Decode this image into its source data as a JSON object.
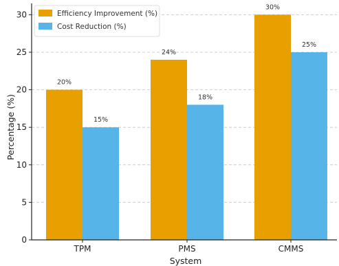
{
  "chart_data": {
    "type": "bar",
    "title": "",
    "xlabel": "System",
    "ylabel": "Percentage (%)",
    "categories": [
      "TPM",
      "PMS",
      "CMMS"
    ],
    "series": [
      {
        "name": "Efficiency Improvement (%)",
        "values": [
          20,
          24,
          30
        ],
        "labels": [
          "20%",
          "24%",
          "30%"
        ],
        "color": "#e8a000"
      },
      {
        "name": "Cost Reduction (%)",
        "values": [
          15,
          18,
          25
        ],
        "labels": [
          "15%",
          "18%",
          "25%"
        ],
        "color": "#56b4e9"
      }
    ],
    "ylim": [
      0,
      31.5
    ],
    "yticks": [
      0,
      5,
      10,
      15,
      20,
      25,
      30
    ],
    "grid": "horizontal-dashed",
    "legend_position": "top-left"
  }
}
